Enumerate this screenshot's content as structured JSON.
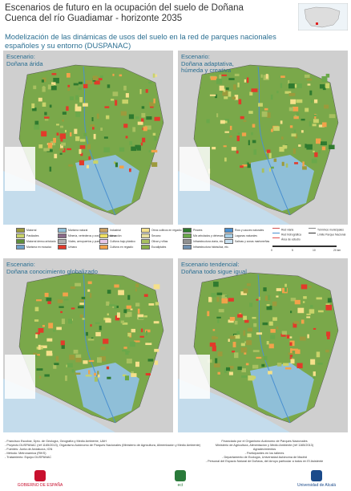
{
  "header": {
    "title_lines": [
      "Escenarios de futuro en la ocupación del suelo de Doñana",
      "Cuenca del río Guadiamar - horizonte 2035"
    ],
    "subtitle_lines": [
      "Modelización de las dinámicas de usos del suelo en la red de parques nacionales",
      "españoles y su entorno (DUSPANAC)"
    ]
  },
  "maps": [
    {
      "label_lines": [
        "Escenario:",
        "Doñana árida"
      ]
    },
    {
      "label_lines": [
        "Escenario:",
        "Doñana adaptativa,",
        "húmeda y creativa"
      ]
    },
    {
      "label_lines": [
        "Escenario:",
        "Doñana conocimiento globalizado"
      ]
    },
    {
      "label_lines": [
        "Escenario tendencial:",
        "Doñana todo sigue igual"
      ]
    }
  ],
  "legend": {
    "items": [
      {
        "label": "Matorral",
        "color": "#9c9a3c"
      },
      {
        "label": "Pastizales",
        "color": "#c9d36a"
      },
      {
        "label": "Matorral denso arbolado",
        "color": "#5f8f3a"
      },
      {
        "label": "Marisma en mosaico",
        "color": "#6ea0c8"
      },
      {
        "label": "Marisma natural",
        "color": "#8fbfd8"
      },
      {
        "label": "Minería, vertederos y zonas en construcción",
        "color": "#8a6a8a"
      },
      {
        "label": "Viales, aeropuertos y puertos",
        "color": "#b0b0b0"
      },
      {
        "label": "Urbano",
        "color": "#e23a2a"
      },
      {
        "label": "Industrial",
        "color": "#c9a060"
      },
      {
        "label": "Arroz",
        "color": "#f0e060"
      },
      {
        "label": "Cultivos bajo plástico",
        "color": "#e8c8e8"
      },
      {
        "label": "Cultivos en regadío",
        "color": "#f2a24a"
      },
      {
        "label": "Otros cultivos en regadío",
        "color": "#f5e08a"
      },
      {
        "label": "Secano",
        "color": "#e8e0a0"
      },
      {
        "label": "Olivar y viñas",
        "color": "#a8c060"
      },
      {
        "label": "Eucaliptales",
        "color": "#8ab04a"
      },
      {
        "label": "Pinares",
        "color": "#2f7a2f"
      },
      {
        "label": "Mix arbolados y dehesas mixtos",
        "color": "#6aa84a"
      },
      {
        "label": "Infraestructura viaria, etc.",
        "color": "#909090"
      },
      {
        "label": "Infraestructura hidráulica, etc.",
        "color": "#7090b0"
      },
      {
        "label": "Ríos y cauces naturales",
        "color": "#4a90d0"
      },
      {
        "label": "Lagunas naturales",
        "color": "#a8d0e8"
      },
      {
        "label": "Salinas y zonas marismeñas",
        "color": "#c8e0f0"
      }
    ],
    "lines": [
      {
        "label": "Red viaria",
        "color": "#d05050"
      },
      {
        "label": "Red hidrográfica",
        "color": "#4a90d0"
      },
      {
        "label": "Área de estudio",
        "color": "#e05050"
      },
      {
        "label": "Términos municipales",
        "color": "#888888"
      },
      {
        "label": "Límite Parque Nacional",
        "color": "#333333"
      }
    ],
    "scale": [
      "0",
      "5",
      "10",
      "20 km"
    ]
  },
  "credits": {
    "left": [
      "- Francisco Escobar, Dpto. de Geología, Geografía y Medio Ambiente, UAH",
      "- Proyecto DUSPANAC (ref 1165/2013), Organismo Autónomo de Parques Nacionales (Ministerio de Agricultura, Alimentación y Medio Ambiente)",
      "- Fuentes: Junta de Andalucía, IGN",
      "- Método: Metronamica (RIKS)",
      "- Tratamiento: Equipo DUSPANAC"
    ],
    "right": [
      "Financiado por el Organismo Autónomo de Parques Nacionales",
      "Ministerio de Agricultura, Alimentación y Medio Ambiente (ref 1165/2013)",
      "Agradecimientos",
      "- Participantes en los talleres",
      "- Departamento de Ecología, Universidad Autónoma de Madrid",
      "- Personal del Espacio Natural de Doñana, del Arroyo particular a todos en El Asistente"
    ]
  },
  "logos": [
    "GOBIERNO DE ESPAÑA",
    "ect",
    "Universidad de Alcalá"
  ]
}
